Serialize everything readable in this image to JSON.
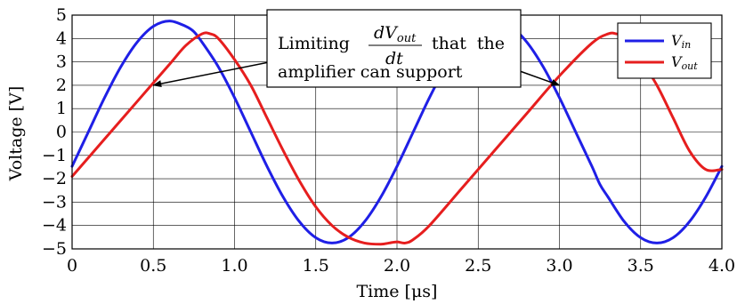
{
  "chart_data": {
    "type": "line",
    "xlabel": "Time [μs]",
    "ylabel": "Voltage [V]",
    "xlim": [
      0,
      4.0
    ],
    "ylim": [
      -5,
      5
    ],
    "grid": true,
    "x_ticks": [
      "0",
      "0.5",
      "1.0",
      "1.5",
      "2.0",
      "2.5",
      "3.0",
      "3.5",
      "4.0"
    ],
    "y_ticks": [
      "5",
      "4",
      "3",
      "2",
      "1",
      "0",
      "−1",
      "−2",
      "−3",
      "−4",
      "−5"
    ],
    "legend": {
      "position": "top-right",
      "entries": [
        "V_in",
        "V_out"
      ]
    },
    "series": [
      {
        "name": "V_in",
        "color": "#1f1fe6",
        "x": [
          0,
          0.1,
          0.2,
          0.3,
          0.4,
          0.5,
          0.6,
          0.7,
          0.75,
          0.8,
          0.9,
          1.0,
          1.1,
          1.2,
          1.3,
          1.4,
          1.5,
          1.6,
          1.7,
          1.8,
          1.9,
          2.0,
          2.1,
          2.2,
          2.3,
          2.4,
          2.5,
          2.6,
          2.7,
          2.8,
          2.9,
          3.0,
          3.1,
          3.2,
          3.25,
          3.3,
          3.4,
          3.5,
          3.6,
          3.7,
          3.8,
          3.9,
          4.0
        ],
        "y": [
          -1.47,
          0.0,
          1.47,
          2.79,
          3.84,
          4.52,
          4.75,
          4.52,
          4.29,
          3.84,
          2.79,
          1.47,
          0.0,
          -1.47,
          -2.79,
          -3.84,
          -4.52,
          -4.75,
          -4.52,
          -3.84,
          -2.79,
          -1.47,
          0.0,
          1.47,
          2.79,
          3.84,
          4.52,
          4.75,
          4.52,
          3.84,
          2.79,
          1.47,
          0.0,
          -1.47,
          -2.25,
          -2.79,
          -3.84,
          -4.52,
          -4.75,
          -4.52,
          -3.84,
          -2.79,
          -1.47
        ]
      },
      {
        "name": "V_out",
        "color": "#e61e1e",
        "x": [
          0,
          0.2,
          0.4,
          0.6,
          0.7,
          0.8,
          0.85,
          0.9,
          1.0,
          1.1,
          1.2,
          1.3,
          1.4,
          1.5,
          1.6,
          1.7,
          1.8,
          1.9,
          1.95,
          2.0,
          2.05,
          2.1,
          2.2,
          2.4,
          2.6,
          2.8,
          3.0,
          3.2,
          3.3,
          3.35,
          3.4,
          3.5,
          3.6,
          3.7,
          3.8,
          3.9,
          4.0
        ],
        "y": [
          -1.9,
          -0.3,
          1.3,
          2.9,
          3.7,
          4.2,
          4.2,
          4.0,
          3.1,
          2.0,
          0.6,
          -0.8,
          -2.1,
          -3.2,
          -4.0,
          -4.5,
          -4.75,
          -4.8,
          -4.75,
          -4.7,
          -4.75,
          -4.6,
          -4.0,
          -2.4,
          -0.8,
          0.8,
          2.4,
          3.8,
          4.2,
          4.2,
          4.05,
          3.1,
          2.0,
          0.6,
          -0.8,
          -1.6,
          -1.6
        ]
      }
    ],
    "annotation": {
      "text_before": "Limiting",
      "frac_num": "dV",
      "frac_num_sub": "out",
      "frac_den": "dt",
      "text_after": "that  the",
      "line2": "amplifier can support",
      "arrow_targets": [
        [
          0.5,
          2.0
        ],
        [
          3.0,
          2.0
        ]
      ]
    }
  }
}
